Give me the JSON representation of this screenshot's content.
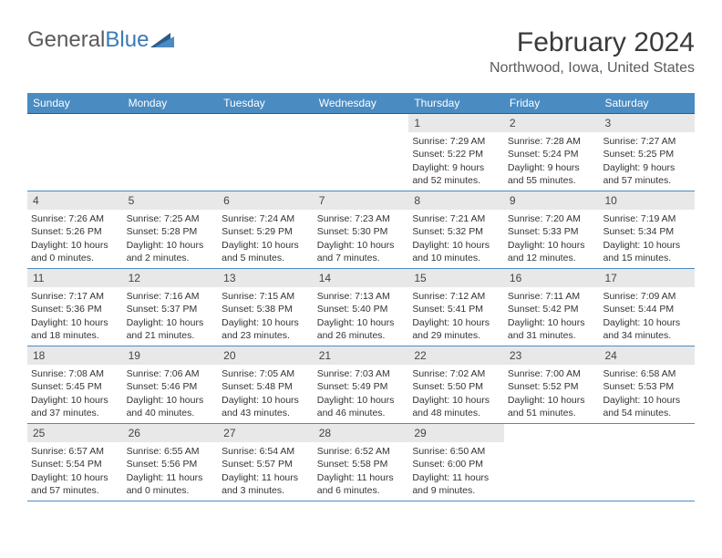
{
  "logo": {
    "word1": "General",
    "word2": "Blue"
  },
  "title": "February 2024",
  "location": "Northwood, Iowa, United States",
  "colors": {
    "header_bg": "#4a8bc2",
    "header_border": "#2d5a8a",
    "daynum_bg": "#e8e8e8",
    "text": "#333333",
    "logo_gray": "#5a5a5a",
    "logo_blue": "#3a7ab8"
  },
  "typography": {
    "title_fontsize": 30,
    "location_fontsize": 16,
    "weekday_fontsize": 12,
    "daynum_fontsize": 12,
    "body_fontsize": 10.5
  },
  "weekdays": [
    "Sunday",
    "Monday",
    "Tuesday",
    "Wednesday",
    "Thursday",
    "Friday",
    "Saturday"
  ],
  "weeks": [
    [
      null,
      null,
      null,
      null,
      {
        "n": "1",
        "sr": "Sunrise: 7:29 AM",
        "ss": "Sunset: 5:22 PM",
        "d1": "Daylight: 9 hours",
        "d2": "and 52 minutes."
      },
      {
        "n": "2",
        "sr": "Sunrise: 7:28 AM",
        "ss": "Sunset: 5:24 PM",
        "d1": "Daylight: 9 hours",
        "d2": "and 55 minutes."
      },
      {
        "n": "3",
        "sr": "Sunrise: 7:27 AM",
        "ss": "Sunset: 5:25 PM",
        "d1": "Daylight: 9 hours",
        "d2": "and 57 minutes."
      }
    ],
    [
      {
        "n": "4",
        "sr": "Sunrise: 7:26 AM",
        "ss": "Sunset: 5:26 PM",
        "d1": "Daylight: 10 hours",
        "d2": "and 0 minutes."
      },
      {
        "n": "5",
        "sr": "Sunrise: 7:25 AM",
        "ss": "Sunset: 5:28 PM",
        "d1": "Daylight: 10 hours",
        "d2": "and 2 minutes."
      },
      {
        "n": "6",
        "sr": "Sunrise: 7:24 AM",
        "ss": "Sunset: 5:29 PM",
        "d1": "Daylight: 10 hours",
        "d2": "and 5 minutes."
      },
      {
        "n": "7",
        "sr": "Sunrise: 7:23 AM",
        "ss": "Sunset: 5:30 PM",
        "d1": "Daylight: 10 hours",
        "d2": "and 7 minutes."
      },
      {
        "n": "8",
        "sr": "Sunrise: 7:21 AM",
        "ss": "Sunset: 5:32 PM",
        "d1": "Daylight: 10 hours",
        "d2": "and 10 minutes."
      },
      {
        "n": "9",
        "sr": "Sunrise: 7:20 AM",
        "ss": "Sunset: 5:33 PM",
        "d1": "Daylight: 10 hours",
        "d2": "and 12 minutes."
      },
      {
        "n": "10",
        "sr": "Sunrise: 7:19 AM",
        "ss": "Sunset: 5:34 PM",
        "d1": "Daylight: 10 hours",
        "d2": "and 15 minutes."
      }
    ],
    [
      {
        "n": "11",
        "sr": "Sunrise: 7:17 AM",
        "ss": "Sunset: 5:36 PM",
        "d1": "Daylight: 10 hours",
        "d2": "and 18 minutes."
      },
      {
        "n": "12",
        "sr": "Sunrise: 7:16 AM",
        "ss": "Sunset: 5:37 PM",
        "d1": "Daylight: 10 hours",
        "d2": "and 21 minutes."
      },
      {
        "n": "13",
        "sr": "Sunrise: 7:15 AM",
        "ss": "Sunset: 5:38 PM",
        "d1": "Daylight: 10 hours",
        "d2": "and 23 minutes."
      },
      {
        "n": "14",
        "sr": "Sunrise: 7:13 AM",
        "ss": "Sunset: 5:40 PM",
        "d1": "Daylight: 10 hours",
        "d2": "and 26 minutes."
      },
      {
        "n": "15",
        "sr": "Sunrise: 7:12 AM",
        "ss": "Sunset: 5:41 PM",
        "d1": "Daylight: 10 hours",
        "d2": "and 29 minutes."
      },
      {
        "n": "16",
        "sr": "Sunrise: 7:11 AM",
        "ss": "Sunset: 5:42 PM",
        "d1": "Daylight: 10 hours",
        "d2": "and 31 minutes."
      },
      {
        "n": "17",
        "sr": "Sunrise: 7:09 AM",
        "ss": "Sunset: 5:44 PM",
        "d1": "Daylight: 10 hours",
        "d2": "and 34 minutes."
      }
    ],
    [
      {
        "n": "18",
        "sr": "Sunrise: 7:08 AM",
        "ss": "Sunset: 5:45 PM",
        "d1": "Daylight: 10 hours",
        "d2": "and 37 minutes."
      },
      {
        "n": "19",
        "sr": "Sunrise: 7:06 AM",
        "ss": "Sunset: 5:46 PM",
        "d1": "Daylight: 10 hours",
        "d2": "and 40 minutes."
      },
      {
        "n": "20",
        "sr": "Sunrise: 7:05 AM",
        "ss": "Sunset: 5:48 PM",
        "d1": "Daylight: 10 hours",
        "d2": "and 43 minutes."
      },
      {
        "n": "21",
        "sr": "Sunrise: 7:03 AM",
        "ss": "Sunset: 5:49 PM",
        "d1": "Daylight: 10 hours",
        "d2": "and 46 minutes."
      },
      {
        "n": "22",
        "sr": "Sunrise: 7:02 AM",
        "ss": "Sunset: 5:50 PM",
        "d1": "Daylight: 10 hours",
        "d2": "and 48 minutes."
      },
      {
        "n": "23",
        "sr": "Sunrise: 7:00 AM",
        "ss": "Sunset: 5:52 PM",
        "d1": "Daylight: 10 hours",
        "d2": "and 51 minutes."
      },
      {
        "n": "24",
        "sr": "Sunrise: 6:58 AM",
        "ss": "Sunset: 5:53 PM",
        "d1": "Daylight: 10 hours",
        "d2": "and 54 minutes."
      }
    ],
    [
      {
        "n": "25",
        "sr": "Sunrise: 6:57 AM",
        "ss": "Sunset: 5:54 PM",
        "d1": "Daylight: 10 hours",
        "d2": "and 57 minutes."
      },
      {
        "n": "26",
        "sr": "Sunrise: 6:55 AM",
        "ss": "Sunset: 5:56 PM",
        "d1": "Daylight: 11 hours",
        "d2": "and 0 minutes."
      },
      {
        "n": "27",
        "sr": "Sunrise: 6:54 AM",
        "ss": "Sunset: 5:57 PM",
        "d1": "Daylight: 11 hours",
        "d2": "and 3 minutes."
      },
      {
        "n": "28",
        "sr": "Sunrise: 6:52 AM",
        "ss": "Sunset: 5:58 PM",
        "d1": "Daylight: 11 hours",
        "d2": "and 6 minutes."
      },
      {
        "n": "29",
        "sr": "Sunrise: 6:50 AM",
        "ss": "Sunset: 6:00 PM",
        "d1": "Daylight: 11 hours",
        "d2": "and 9 minutes."
      },
      null,
      null
    ]
  ]
}
